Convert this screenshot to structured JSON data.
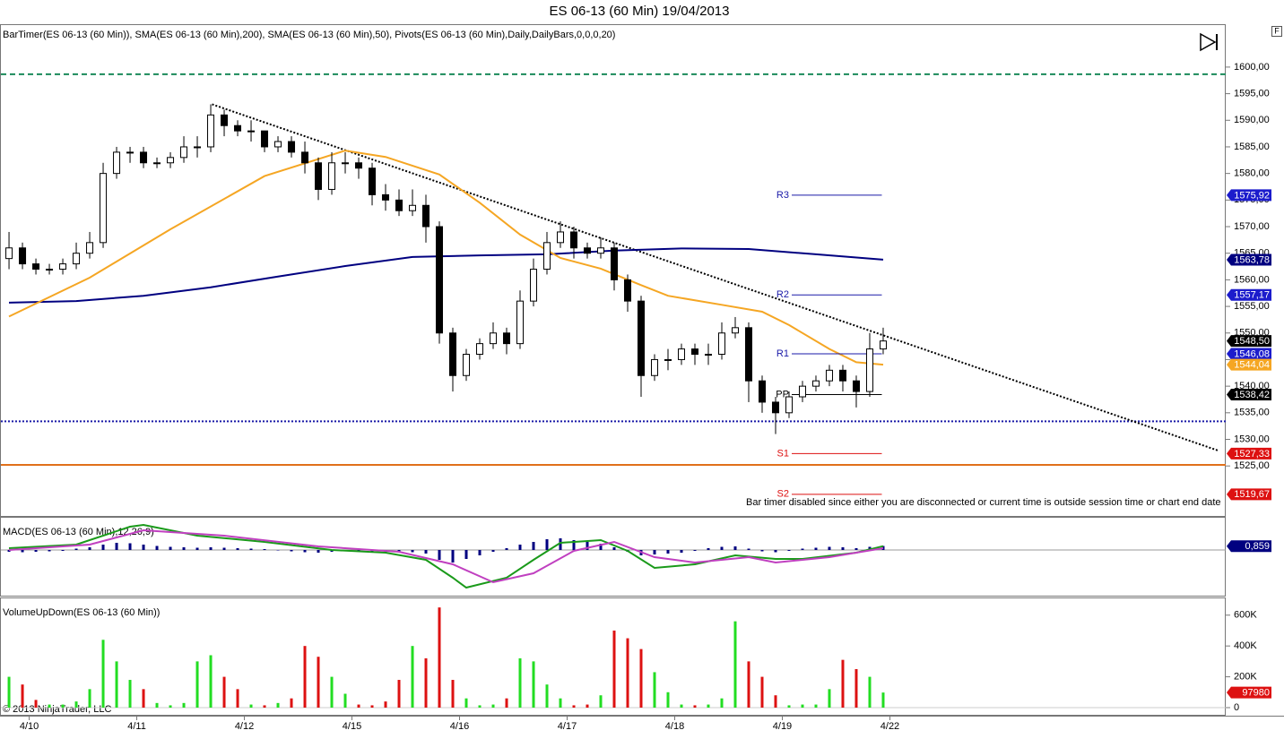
{
  "title": "ES 06-13 (60 Min)  19/04/2013",
  "copyright": "© 2013 NinjaTrader, LLC",
  "chart_data": [
    {
      "type": "candlestick",
      "label": "BarTimer(ES 06-13 (60 Min)), SMA(ES 06-13 (60 Min),200), SMA(ES 06-13 (60 Min),50), Pivots(ES 06-13 (60 Min),Daily,DailyBars,0,0,0,20)",
      "note": "Bar timer disabled since either you are disconnected or current time is outside session time or chart end date",
      "xlim": [
        -0.67,
        90.47
      ],
      "xticks": [
        {
          "value": 1.5,
          "label": "4/10"
        },
        {
          "value": 9.5,
          "label": "4/11"
        },
        {
          "value": 17.5,
          "label": "4/12"
        },
        {
          "value": 25.5,
          "label": "4/15"
        },
        {
          "value": 33.5,
          "label": "4/16"
        },
        {
          "value": 41.5,
          "label": "4/17"
        },
        {
          "value": 49.5,
          "label": "4/18"
        },
        {
          "value": 57.5,
          "label": "4/19"
        },
        {
          "value": 65.5,
          "label": "4/22"
        }
      ],
      "ylim": [
        1515.6,
        1607.9
      ],
      "yticks": [
        {
          "value": 1525,
          "label": "1525,00"
        },
        {
          "value": 1530,
          "label": "1530,00"
        },
        {
          "value": 1535,
          "label": "1535,00"
        },
        {
          "value": 1540,
          "label": "1540,00"
        },
        {
          "value": 1545,
          "label": "1545,00"
        },
        {
          "value": 1550,
          "label": "1550,00"
        },
        {
          "value": 1555,
          "label": "1555,00"
        },
        {
          "value": 1560,
          "label": "1560,00"
        },
        {
          "value": 1565,
          "label": "1565,00"
        },
        {
          "value": 1570,
          "label": "1570,00"
        },
        {
          "value": 1575,
          "label": "1575,00"
        },
        {
          "value": 1580,
          "label": "1580,00"
        },
        {
          "value": 1585,
          "label": "1585,00"
        },
        {
          "value": 1590,
          "label": "1590,00"
        },
        {
          "value": 1595,
          "label": "1595,00"
        },
        {
          "value": 1600,
          "label": "1600,00"
        }
      ],
      "open": [
        1564,
        1566,
        1563,
        1562,
        1562,
        1563,
        1565,
        1567,
        1580,
        1584,
        1584,
        1582,
        1582,
        1583,
        1585,
        1585,
        1591,
        1589,
        1588,
        1588,
        1585,
        1586,
        1584,
        1582,
        1577,
        1582,
        1582,
        1581,
        1576,
        1575,
        1573,
        1574,
        1570,
        1550,
        1542,
        1546,
        1548,
        1550,
        1548,
        1556,
        1562,
        1567,
        1569,
        1566,
        1565,
        1566,
        1560,
        1556,
        1542,
        1545,
        1545,
        1547,
        1546,
        1546,
        1550,
        1551,
        1541,
        1537,
        1535,
        1538,
        1540,
        1541,
        1543,
        1541,
        1539,
        1547
      ],
      "high": [
        1569,
        1567,
        1564,
        1563,
        1564,
        1567,
        1569,
        1582,
        1585,
        1585,
        1585,
        1583,
        1584,
        1587,
        1587,
        1593,
        1592,
        1590,
        1590,
        1588,
        1587,
        1587,
        1586,
        1583,
        1584,
        1584,
        1583,
        1582,
        1578,
        1577,
        1577,
        1576,
        1571,
        1551,
        1547,
        1549,
        1552,
        1551,
        1558,
        1564,
        1569,
        1571,
        1570,
        1567,
        1568,
        1567,
        1561,
        1557,
        1546,
        1547,
        1548,
        1548,
        1548,
        1552,
        1553,
        1552,
        1542,
        1538,
        1539,
        1541,
        1542,
        1544,
        1544,
        1542,
        1550,
        1551
      ],
      "low": [
        1562,
        1562,
        1561,
        1561,
        1561,
        1562,
        1564,
        1566,
        1579,
        1582,
        1581,
        1581,
        1581,
        1582,
        1583,
        1584,
        1587,
        1587,
        1586,
        1584,
        1584,
        1583,
        1580,
        1575,
        1576,
        1580,
        1579,
        1574,
        1573,
        1572,
        1572,
        1567,
        1548,
        1539,
        1541,
        1545,
        1547,
        1546,
        1547,
        1555,
        1561,
        1566,
        1564,
        1564,
        1564,
        1558,
        1554,
        1538,
        1541,
        1543,
        1544,
        1544,
        1544,
        1545,
        1549,
        1537,
        1535,
        1531,
        1534,
        1537,
        1539,
        1540,
        1539,
        1536,
        1538,
        1546
      ],
      "close": [
        1566,
        1563,
        1562,
        1562,
        1563,
        1565,
        1567,
        1580,
        1584,
        1584,
        1582,
        1582,
        1583,
        1585,
        1585,
        1591,
        1589,
        1588,
        1588,
        1585,
        1586,
        1584,
        1582,
        1577,
        1582,
        1582,
        1581,
        1576,
        1575,
        1573,
        1574,
        1570,
        1550,
        1542,
        1546,
        1548,
        1550,
        1548,
        1556,
        1562,
        1567,
        1569,
        1566,
        1565,
        1566,
        1560,
        1556,
        1542,
        1545,
        1545,
        1547,
        1546,
        1546,
        1550,
        1551,
        1541,
        1537,
        1535,
        1538,
        1540,
        1541,
        1543,
        1541,
        1539,
        1547,
        1548.5
      ],
      "up_color": "#ffffff",
      "down_color": "#000000",
      "series": [
        {
          "color": "#000080",
          "x": [
            0,
            5,
            10,
            15,
            20,
            25,
            30,
            35,
            40,
            45,
            50,
            55,
            60,
            65
          ],
          "values": [
            1555.7,
            1556.0,
            1557.0,
            1558.6,
            1560.6,
            1562.6,
            1564.3,
            1564.6,
            1564.8,
            1565.5,
            1565.9,
            1565.8,
            1564.8,
            1563.78
          ]
        },
        {
          "color": "#f5a623",
          "x": [
            0,
            6,
            12,
            19,
            25,
            28,
            32,
            35,
            38,
            41,
            44,
            47,
            49,
            53,
            56,
            58,
            61,
            63,
            65
          ],
          "values": [
            1553.1,
            1560.4,
            1569.5,
            1579.5,
            1584.3,
            1583.1,
            1579.8,
            1574.5,
            1568.5,
            1564.1,
            1562.1,
            1559,
            1557,
            1555.3,
            1554,
            1551.5,
            1547,
            1544.5,
            1544.04
          ]
        }
      ],
      "lines": [
        {
          "value": 1598.65,
          "color": "#1a8a5a",
          "style": "dashed"
        },
        {
          "value": 1533.4,
          "color": "#1a1aa8",
          "style": "dotted"
        },
        {
          "value": 1525.2,
          "color": "#e0701a",
          "style": "solid"
        }
      ],
      "trendline": {
        "x": [
          15.1,
          89.9
        ],
        "values": [
          1593,
          1527.9
        ]
      },
      "pivot_range": [
        58.2,
        64.9
      ],
      "pivots": [
        {
          "label": "R3",
          "value": 1575.92,
          "color": "#1a1aa8"
        },
        {
          "label": "R2",
          "value": 1557.17,
          "color": "#1a1aa8"
        },
        {
          "label": "R1",
          "value": 1546.08,
          "color": "#1a1aa8"
        },
        {
          "label": "PP",
          "value": 1538.42,
          "color": "#000000"
        },
        {
          "label": "S1",
          "value": 1527.33,
          "color": "#dd1111"
        },
        {
          "label": "S2",
          "value": 1519.67,
          "color": "#dd1111"
        }
      ],
      "markers": [
        {
          "value": 1575.92,
          "label": "1575,92",
          "color": "#1c1ccc"
        },
        {
          "value": 1563.78,
          "label": "1563,78",
          "color": "#000080"
        },
        {
          "value": 1557.17,
          "label": "1557,17",
          "color": "#1c1ccc"
        },
        {
          "value": 1548.5,
          "label": "1548,50",
          "color": "#000000"
        },
        {
          "value": 1546.08,
          "label": "1546,08",
          "color": "#1c1ccc"
        },
        {
          "value": 1544.04,
          "label": "1544,04",
          "color": "#f5a623"
        },
        {
          "value": 1538.42,
          "label": "1538,42",
          "color": "#000000"
        },
        {
          "value": 1527.33,
          "label": "1527,33",
          "color": "#dd1111"
        },
        {
          "value": 1519.67,
          "label": "1519,67",
          "color": "#dd1111"
        }
      ]
    },
    {
      "type": "macd",
      "label": "MACD(ES 06-13 (60 Min),12,26,9)",
      "ylim": [
        -10.2,
        7.2
      ],
      "histogram": {
        "color": "#000080",
        "values": [
          -0.4,
          -0.5,
          -0.4,
          -0.3,
          -0.2,
          0.3,
          0.6,
          1.2,
          1.6,
          1.5,
          1.2,
          0.9,
          0.7,
          0.6,
          0.5,
          0.6,
          0.5,
          0.4,
          0.3,
          0.2,
          -0.1,
          -0.3,
          -0.5,
          -0.6,
          -0.4,
          -0.3,
          -0.4,
          -0.6,
          -0.5,
          -0.4,
          -0.5,
          -0.8,
          -2.2,
          -2.8,
          -2.0,
          -1.2,
          -0.4,
          0.4,
          1.2,
          1.8,
          2.4,
          2.6,
          2.2,
          1.8,
          1.4,
          0.6,
          -0.4,
          -1.2,
          -1.0,
          -0.8,
          -0.6,
          -0.2,
          0.4,
          0.7,
          0.8,
          0.3,
          -0.3,
          -0.5,
          -0.2,
          0.3,
          0.5,
          0.7,
          0.6,
          0.4,
          0.7,
          0.9
        ]
      },
      "series": [
        {
          "color": "#1a9a1a",
          "x": [
            0,
            5,
            9,
            10,
            14,
            19,
            24,
            28,
            31,
            33,
            34,
            37,
            39,
            41,
            44,
            46,
            48,
            51,
            54,
            57,
            59,
            63,
            65
          ],
          "values": [
            0.4,
            1.2,
            5.2,
            5.6,
            3.2,
            1.8,
            0,
            -0.6,
            -2.2,
            -6.2,
            -8.4,
            -6.2,
            -2.2,
            1.6,
            2.2,
            -0.2,
            -4,
            -3.2,
            -1.2,
            -2,
            -2,
            -0.6,
            0.859
          ]
        },
        {
          "color": "#c040c0",
          "x": [
            0,
            6,
            10,
            16,
            23,
            29,
            33,
            36,
            39,
            42,
            45,
            48,
            51,
            55,
            57,
            61,
            65
          ],
          "values": [
            0,
            1.2,
            4.4,
            3.2,
            0.8,
            -0.4,
            -3.2,
            -7.2,
            -5.2,
            -0.2,
            1.8,
            -1.6,
            -2.8,
            -1.6,
            -2.8,
            -1.6,
            0.4
          ]
        }
      ],
      "markers": [
        {
          "value": 0.859,
          "label": "0,859",
          "color": "#000080"
        }
      ]
    },
    {
      "type": "volume",
      "label": "VolumeUpDown(ES 06-13 (60 Min))",
      "ylim": [
        -46500,
        709000
      ],
      "yticks": [
        0,
        {
          "value": 200000,
          "label": "200K"
        },
        {
          "value": 400000,
          "label": "400K"
        },
        {
          "value": 600000,
          "label": "600K"
        }
      ],
      "values": [
        200000,
        150000,
        50000,
        20000,
        20000,
        40000,
        120000,
        440000,
        300000,
        180000,
        120000,
        30000,
        15000,
        30000,
        300000,
        340000,
        200000,
        120000,
        20000,
        15000,
        30000,
        60000,
        400000,
        330000,
        200000,
        90000,
        20000,
        15000,
        40000,
        180000,
        400000,
        320000,
        650000,
        180000,
        60000,
        15000,
        20000,
        60000,
        320000,
        300000,
        150000,
        60000,
        15000,
        20000,
        80000,
        500000,
        450000,
        380000,
        230000,
        100000,
        20000,
        15000,
        20000,
        60000,
        560000,
        300000,
        200000,
        80000,
        15000,
        20000,
        20000,
        120000,
        310000,
        250000,
        200000,
        97980
      ],
      "up_color": "#22dd22",
      "down_color": "#dd1111",
      "markers": [
        {
          "value": 97980,
          "color": "#dd1111"
        }
      ]
    }
  ]
}
